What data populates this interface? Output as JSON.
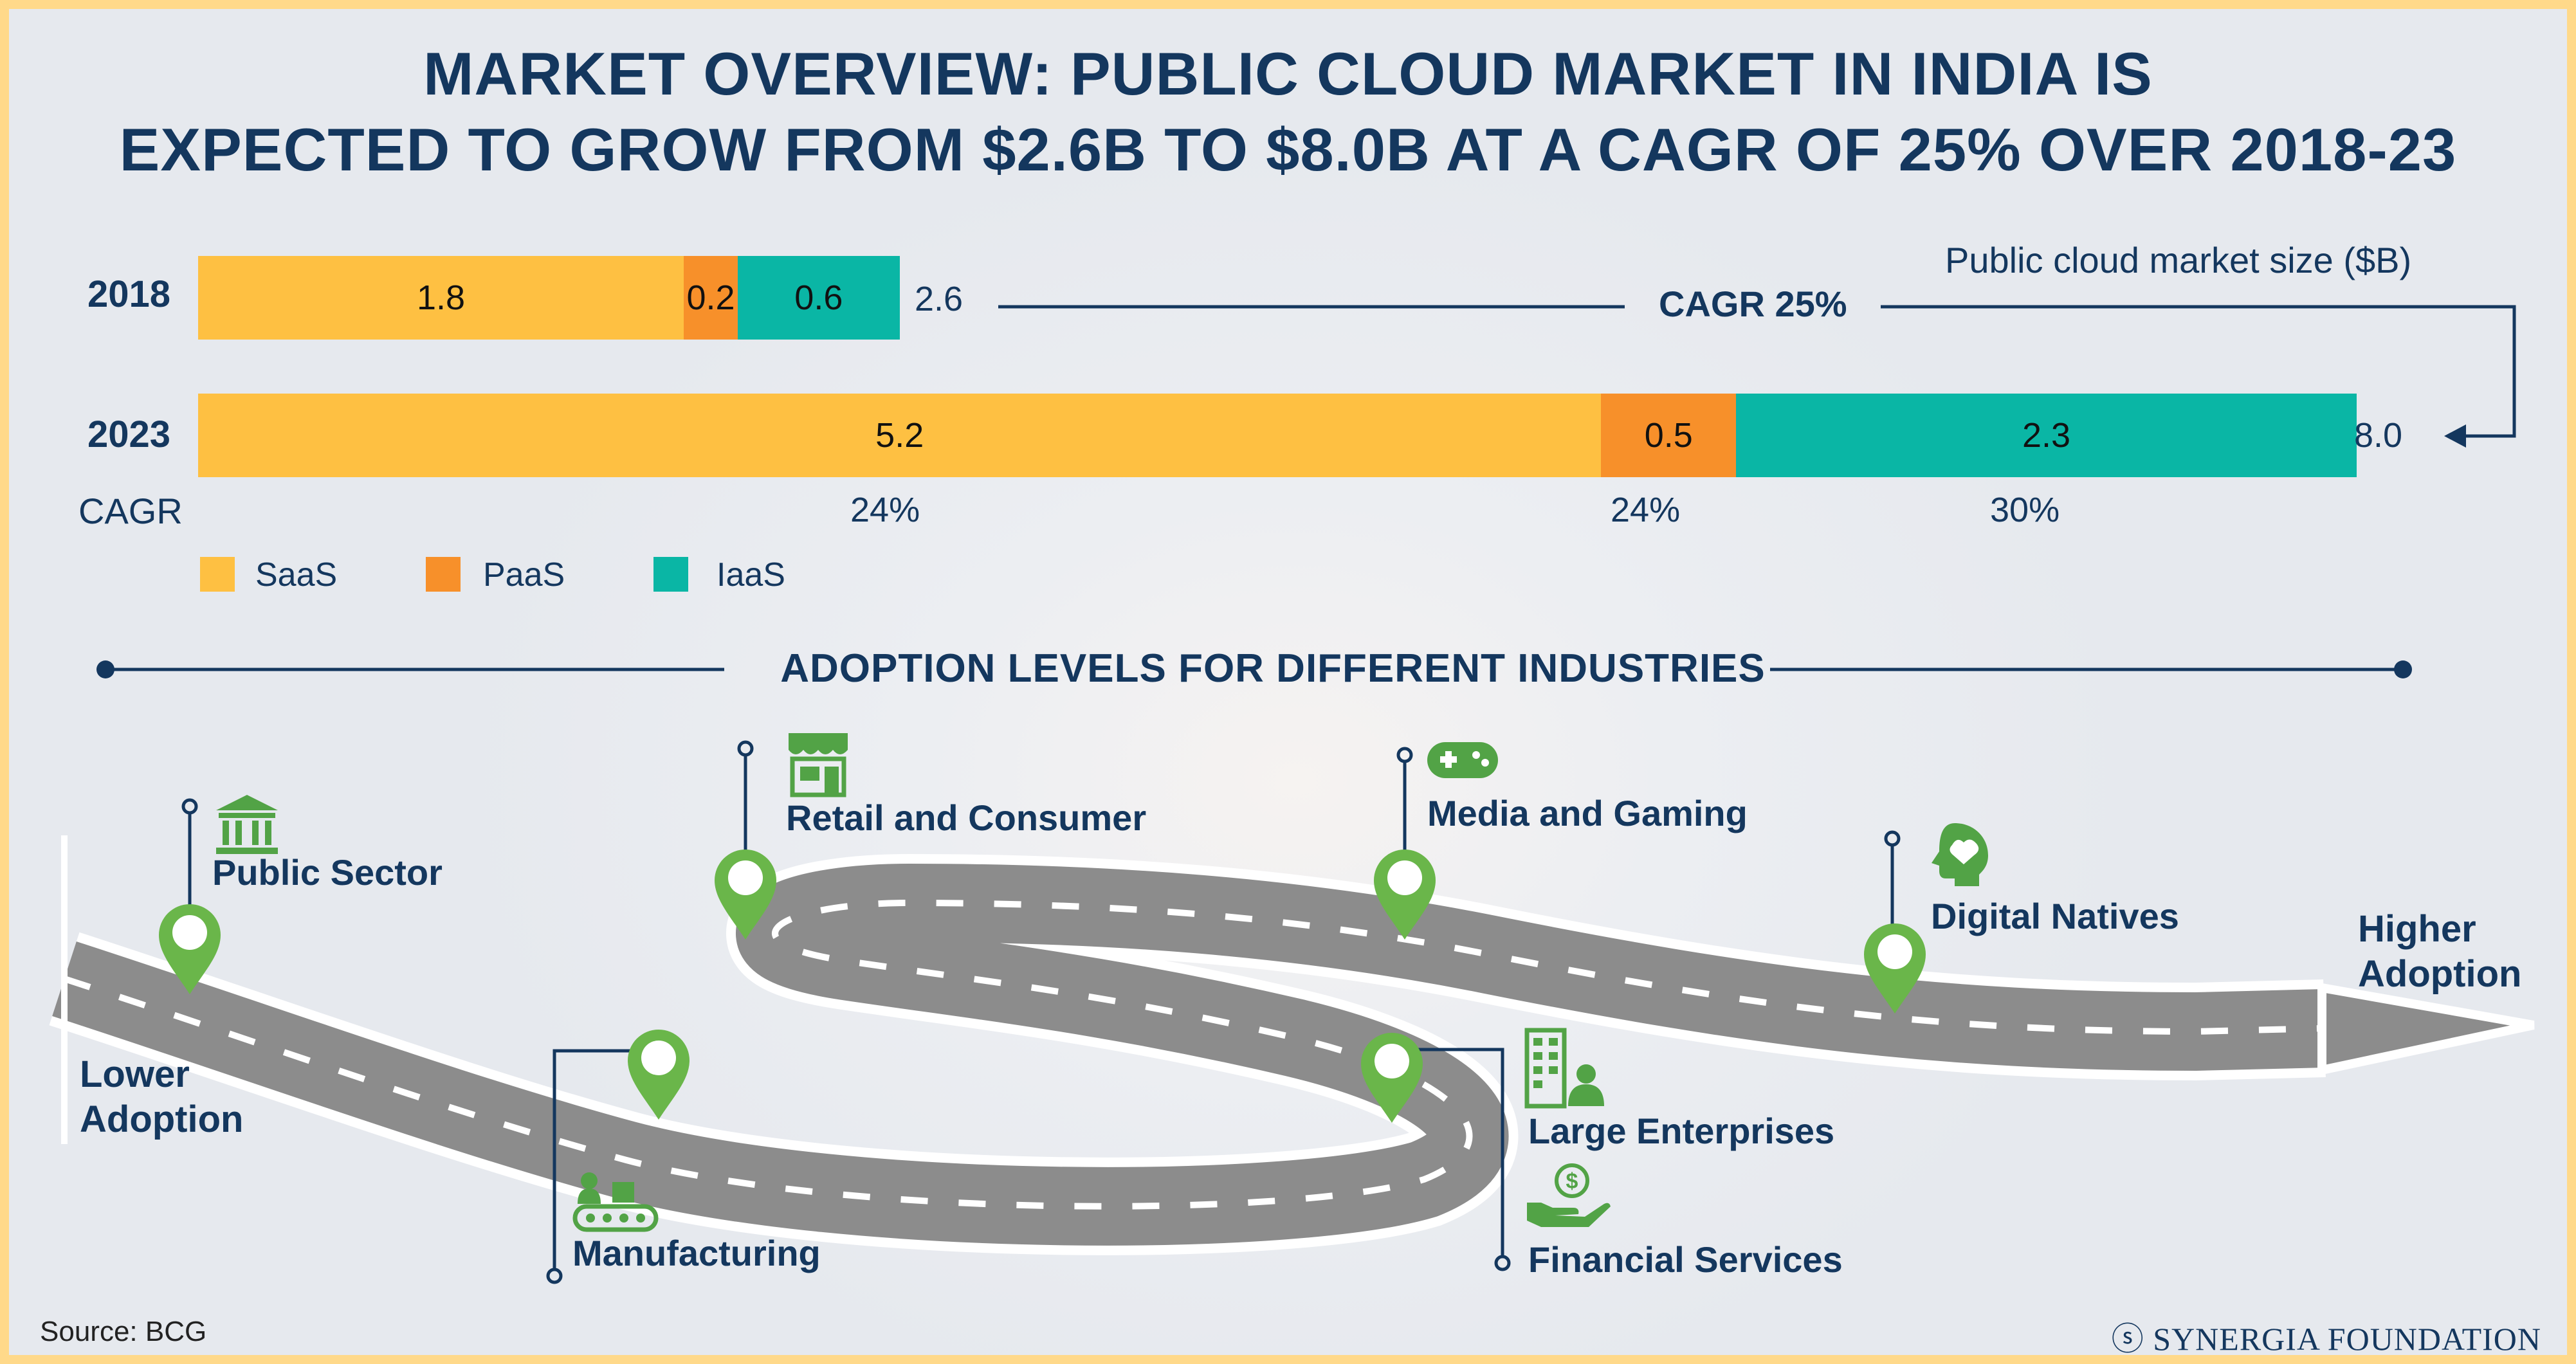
{
  "title_lines": [
    "MARKET OVERVIEW: PUBLIC CLOUD MARKET IN INDIA IS",
    "EXPECTED TO GROW FROM $2.6B TO $8.0B AT A CAGR OF 25% OVER 2018-23"
  ],
  "chart_data": {
    "type": "bar",
    "orientation": "horizontal",
    "stacked": true,
    "title": "Public cloud market size ($B)",
    "categories": [
      "2018",
      "2023"
    ],
    "series": [
      {
        "name": "SaaS",
        "values": [
          1.8,
          5.2
        ],
        "color": "#fec042",
        "cagr": "24%"
      },
      {
        "name": "PaaS",
        "values": [
          0.2,
          0.5
        ],
        "color": "#f7902a",
        "cagr": "24%"
      },
      {
        "name": "IaaS",
        "values": [
          0.6,
          2.3
        ],
        "color": "#0ab6a5",
        "cagr": "30%"
      }
    ],
    "totals": [
      "2.6",
      "8.0"
    ],
    "overall_cagr": "CAGR 25%",
    "cagr_label": "CAGR",
    "legend_placement": "bottom-left"
  },
  "adoption": {
    "title": "ADOPTION LEVELS FOR DIFFERENT INDUSTRIES",
    "start_label": [
      "Lower",
      "Adoption"
    ],
    "end_label": [
      "Higher",
      "Adoption"
    ],
    "industries": [
      {
        "name": "Public Sector",
        "icon": "government-building-icon"
      },
      {
        "name": "Manufacturing",
        "icon": "conveyor-belt-icon"
      },
      {
        "name": "Retail and Consumer",
        "icon": "storefront-icon"
      },
      {
        "name": "Large Enterprises",
        "icon": "office-building-person-icon"
      },
      {
        "name": "Financial Services",
        "icon": "hand-dollar-icon"
      },
      {
        "name": "Media and Gaming",
        "icon": "gamepad-icon"
      },
      {
        "name": "Digital Natives",
        "icon": "brain-head-icon"
      }
    ],
    "pin_color": "#6ab64a",
    "icon_color": "#52a346"
  },
  "source": "Source: BCG",
  "brand": "SYNERGIA FOUNDATION",
  "colors": {
    "navy": "#14375e",
    "road": "#8b8b8b",
    "frame": "#ffd98a"
  }
}
